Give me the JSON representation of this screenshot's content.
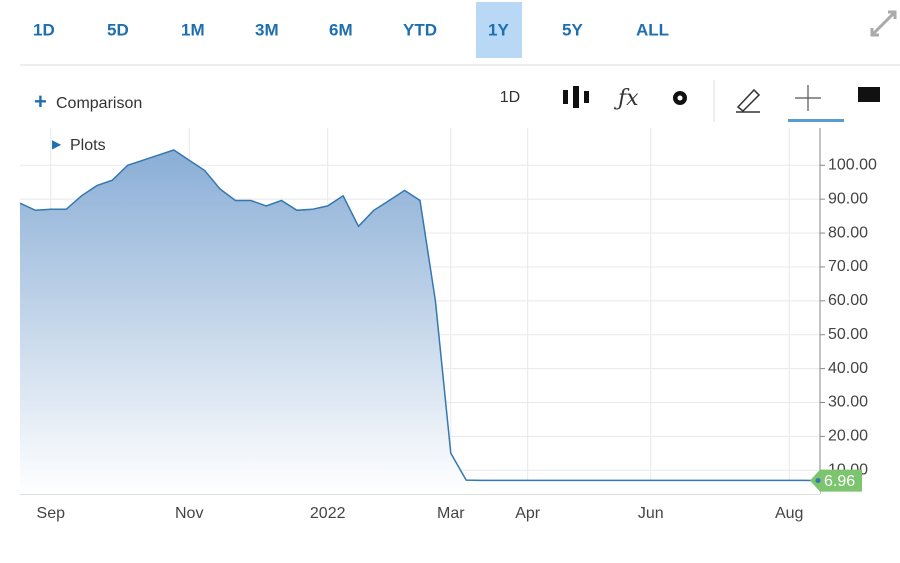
{
  "toolbar": {
    "ranges": [
      "1D",
      "5D",
      "1M",
      "3M",
      "6M",
      "YTD",
      "1Y",
      "5Y",
      "ALL"
    ],
    "selected": 6,
    "comparison": "Comparison",
    "interval": "1D",
    "plots": "Plots"
  },
  "chart_data": {
    "type": "line",
    "categories": [
      null,
      null,
      "Sep",
      null,
      null,
      null,
      null,
      null,
      null,
      null,
      null,
      "Nov",
      null,
      null,
      null,
      null,
      null,
      null,
      null,
      null,
      "2022",
      null,
      null,
      null,
      null,
      null,
      null,
      null,
      "Mar",
      null,
      null,
      null,
      null,
      "Apr",
      null,
      null,
      null,
      null,
      null,
      null,
      null,
      "Jun",
      null,
      null,
      null,
      null,
      null,
      null,
      null,
      null,
      "Aug",
      null,
      null
    ],
    "values": [
      88.8,
      86.7,
      87,
      87,
      91,
      94,
      95.6,
      100,
      101.5,
      103,
      104.5,
      101.5,
      98.5,
      93,
      89.6,
      89.6,
      88,
      89.6,
      86.7,
      87,
      88,
      91,
      82,
      86.7,
      89.6,
      92.6,
      89.6,
      60,
      15,
      7.1,
      7,
      7,
      7,
      7,
      7,
      7,
      7,
      7,
      7,
      7,
      7,
      7,
      7,
      7,
      7,
      7,
      7,
      7,
      7,
      7,
      7,
      7,
      6.96
    ],
    "color": "#3577b0",
    "ylim": [
      3,
      111
    ],
    "yticks": [
      {
        "value": 10,
        "label": "10.00"
      },
      {
        "value": 20,
        "label": "20.00"
      },
      {
        "value": 30,
        "label": "30.00"
      },
      {
        "value": 40,
        "label": "40.00"
      },
      {
        "value": 50,
        "label": "50.00"
      },
      {
        "value": 60,
        "label": "60.00"
      },
      {
        "value": 70,
        "label": "70.00"
      },
      {
        "value": 80,
        "label": "80.00"
      },
      {
        "value": 90,
        "label": "90.00"
      },
      {
        "value": 100,
        "label": "100.00"
      }
    ],
    "grid": true
  }
}
